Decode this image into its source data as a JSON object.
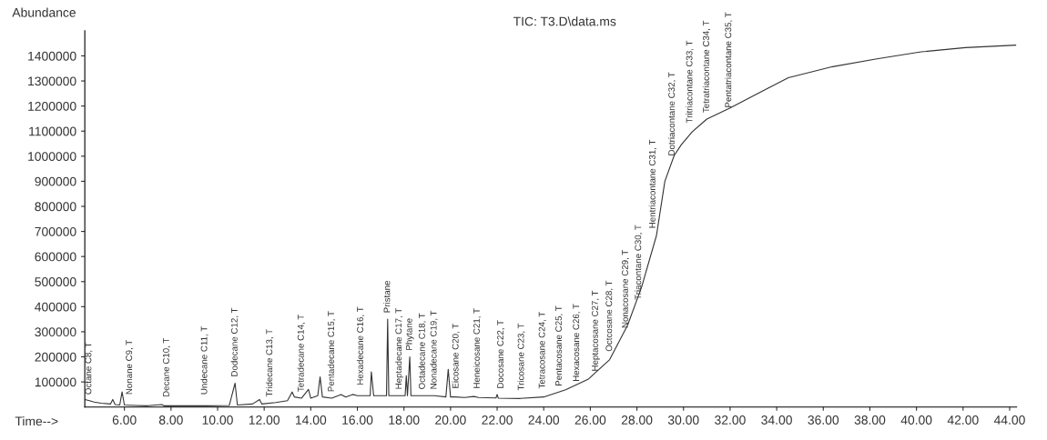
{
  "chart_data": {
    "type": "line",
    "title": "TIC: T3.D\\data.ms",
    "xlabel": "Time-->",
    "ylabel": "Abundance",
    "xlim": [
      4.3,
      44.3
    ],
    "ylim": [
      0,
      1500000
    ],
    "xticks": [
      {
        "value": 6,
        "label": "6.00"
      },
      {
        "value": 8,
        "label": "8.00"
      },
      {
        "value": 10,
        "label": "10.00"
      },
      {
        "value": 12,
        "label": "12.00"
      },
      {
        "value": 14,
        "label": "14.00"
      },
      {
        "value": 16,
        "label": "16.00"
      },
      {
        "value": 18,
        "label": "18.00"
      },
      {
        "value": 20,
        "label": "20.00"
      },
      {
        "value": 22,
        "label": "22.00"
      },
      {
        "value": 24,
        "label": "24.00"
      },
      {
        "value": 26,
        "label": "26.00"
      },
      {
        "value": 28,
        "label": "28.00"
      },
      {
        "value": 30,
        "label": "30.00"
      },
      {
        "value": 32,
        "label": "32.00"
      },
      {
        "value": 34,
        "label": "34.00"
      },
      {
        "value": 36,
        "label": "36.00"
      },
      {
        "value": 38,
        "label": "38.00"
      },
      {
        "value": 40,
        "label": "40.00"
      },
      {
        "value": 42,
        "label": "42.00"
      },
      {
        "value": 44,
        "label": "44.00"
      }
    ],
    "yticks": [
      100000,
      200000,
      300000,
      400000,
      500000,
      600000,
      700000,
      800000,
      900000,
      1000000,
      1100000,
      1200000,
      1300000,
      1400000
    ],
    "grid": false,
    "legend": false,
    "marker": "none",
    "line_style": "solid",
    "series": [
      {
        "color": "#333333",
        "x": [
          4.3,
          4.5,
          4.7,
          5.0,
          5.4,
          5.5,
          5.6,
          5.8,
          5.9,
          6.0,
          6.5,
          7.0,
          7.6,
          7.7,
          8.5,
          9.5,
          10.5,
          10.75,
          10.85,
          11.5,
          11.8,
          11.9,
          12.5,
          13.0,
          13.2,
          13.3,
          13.6,
          13.9,
          14.0,
          14.3,
          14.4,
          14.5,
          14.9,
          15.3,
          15.5,
          15.8,
          16.0,
          16.55,
          16.6,
          16.7,
          17.0,
          17.25,
          17.3,
          17.35,
          17.8,
          18.05,
          18.1,
          18.15,
          18.25,
          18.3,
          18.8,
          19.3,
          19.8,
          19.9,
          20.0,
          20.2,
          20.6,
          21.0,
          21.2,
          21.95,
          22.0,
          22.05,
          23.0,
          24.0,
          24.94,
          25.9,
          26.83,
          27.6,
          28.2,
          28.84,
          29.2,
          29.6,
          29.9,
          30.36,
          31.0,
          32.0,
          33.27,
          34.5,
          36.4,
          38.3,
          40.2,
          42.1,
          44.26
        ],
        "values": [
          30000,
          25000,
          20000,
          15000,
          12000,
          30000,
          10000,
          8000,
          60000,
          8000,
          6000,
          5000,
          10000,
          5000,
          5000,
          5000,
          6000,
          95000,
          8000,
          12000,
          30000,
          12000,
          18000,
          25000,
          60000,
          40000,
          35000,
          70000,
          35000,
          45000,
          120000,
          40000,
          35000,
          50000,
          40000,
          50000,
          45000,
          45000,
          140000,
          45000,
          45000,
          45000,
          350000,
          45000,
          45000,
          45000,
          125000,
          45000,
          200000,
          45000,
          45000,
          45000,
          40000,
          150000,
          40000,
          40000,
          38000,
          42000,
          38000,
          36000,
          50000,
          35000,
          34000,
          40000,
          69000,
          110000,
          189000,
          326000,
          478000,
          684000,
          900000,
          1003000,
          1045000,
          1096000,
          1148000,
          1192000,
          1254000,
          1313000,
          1357000,
          1388000,
          1416000,
          1433000,
          1443000
        ]
      }
    ],
    "annotations": [
      {
        "text": "Octane C8, T",
        "x": 4.48,
        "y": 24000
      },
      {
        "text": "Nonane C9, T",
        "x": 6.23,
        "y": 24000
      },
      {
        "text": "Decane C10, T",
        "x": 7.82,
        "y": 14000
      },
      {
        "text": "Undecane C11, T",
        "x": 9.45,
        "y": 24000
      },
      {
        "text": "Dodecane C12, T",
        "x": 10.75,
        "y": 95000
      },
      {
        "text": "Tridecane C13, T",
        "x": 12.25,
        "y": 15500
      },
      {
        "text": "Tetradecane C14, T",
        "x": 13.6,
        "y": 35000
      },
      {
        "text": "Pentadecane C15, T",
        "x": 14.9,
        "y": 35000
      },
      {
        "text": "Hexadecane C16, T",
        "x": 16.15,
        "y": 62000
      },
      {
        "text": "Pristane",
        "x": 17.3,
        "y": 350000
      },
      {
        "text": "Heptadecane C17, T",
        "x": 17.8,
        "y": 45000
      },
      {
        "text": "Phytane",
        "x": 18.25,
        "y": 200000
      },
      {
        "text": "Octadecane C18, T",
        "x": 18.8,
        "y": 45000
      },
      {
        "text": "Nonadecane C19, T",
        "x": 19.3,
        "y": 45000
      },
      {
        "text": "Eicosane C20, T",
        "x": 20.24,
        "y": 48000
      },
      {
        "text": "Heneicosane C21, T",
        "x": 21.15,
        "y": 48000
      },
      {
        "text": "Docosane C22, T",
        "x": 22.17,
        "y": 48000
      },
      {
        "text": "Tricosane C23, T",
        "x": 23.05,
        "y": 41000
      },
      {
        "text": "Tetracosane C24, T",
        "x": 23.95,
        "y": 48000
      },
      {
        "text": "Pentacosane C25, T",
        "x": 24.67,
        "y": 58000
      },
      {
        "text": "Hexacosane C26, T",
        "x": 25.42,
        "y": 76000
      },
      {
        "text": "Heptacosane C27, T",
        "x": 26.23,
        "y": 117000
      },
      {
        "text": "Octcosane C28, T",
        "x": 26.83,
        "y": 196000
      },
      {
        "text": "Nonacosane C29, T",
        "x": 27.52,
        "y": 289000
      },
      {
        "text": "Triacontane C30, T",
        "x": 28.08,
        "y": 402000
      },
      {
        "text": "Hentriacontane C31, T",
        "x": 28.69,
        "y": 687000
      },
      {
        "text": "Dotriacontane C32, T",
        "x": 29.52,
        "y": 976000
      },
      {
        "text": "Tritriacontane C33, T",
        "x": 30.28,
        "y": 1107000
      },
      {
        "text": "Tetratriacontane C34, T",
        "x": 31.0,
        "y": 1148000
      },
      {
        "text": "Pentatriacontane C35, T",
        "x": 31.95,
        "y": 1168000
      }
    ]
  }
}
